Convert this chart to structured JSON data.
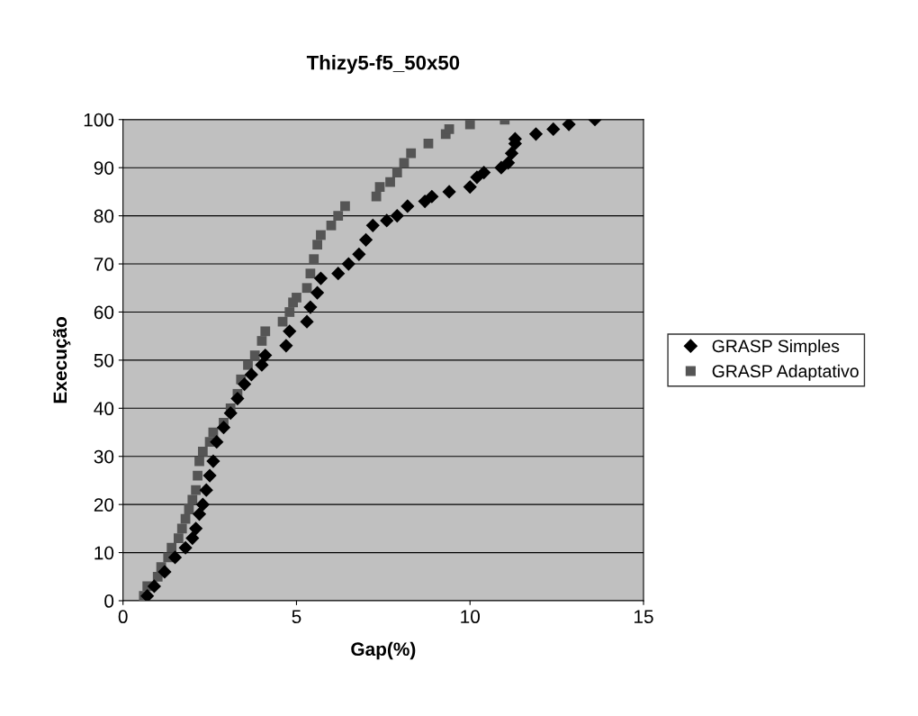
{
  "chart_data": {
    "type": "scatter",
    "title": "Thizy5-f5_50x50",
    "xlabel": "Gap(%)",
    "ylabel": "Execução",
    "xlim": [
      0,
      15
    ],
    "xticks": [
      0,
      5,
      10,
      15
    ],
    "ylim": [
      0,
      100
    ],
    "yticks": [
      0,
      10,
      20,
      30,
      40,
      50,
      60,
      70,
      80,
      90,
      100
    ],
    "grid": "y",
    "legend": "right",
    "series": [
      {
        "name": "GRASP Simples",
        "color": "#000000",
        "marker": "diamond",
        "x": [
          0.7,
          0.9,
          1.2,
          1.5,
          1.8,
          2.0,
          2.1,
          2.2,
          2.3,
          2.4,
          2.5,
          2.6,
          2.7,
          2.9,
          3.1,
          3.3,
          3.5,
          3.7,
          4.0,
          4.1,
          4.7,
          4.8,
          5.3,
          5.4,
          5.6,
          5.7,
          6.2,
          6.5,
          6.8,
          7.0,
          7.2,
          7.6,
          7.9,
          8.2,
          8.7,
          8.9,
          9.4,
          10.0,
          10.2,
          10.4,
          10.9,
          11.1,
          11.2,
          11.3,
          11.3,
          11.9,
          12.4,
          12.85,
          13.6
        ],
        "values": [
          1,
          3,
          6,
          9,
          11,
          13,
          15,
          18,
          20,
          23,
          26,
          29,
          33,
          36,
          39,
          42,
          45,
          47,
          49,
          51,
          53,
          56,
          58,
          61,
          64,
          67,
          68,
          70,
          72,
          75,
          78,
          79,
          80,
          82,
          83,
          84,
          85,
          86,
          88,
          89,
          90,
          91,
          93,
          95,
          96,
          97,
          98,
          99,
          100
        ]
      },
      {
        "name": "GRASP Adaptativo",
        "color": "#555555",
        "marker": "square",
        "x": [
          0.6,
          0.7,
          1.0,
          1.1,
          1.3,
          1.4,
          1.6,
          1.7,
          1.8,
          1.9,
          2.0,
          2.1,
          2.15,
          2.2,
          2.3,
          2.5,
          2.6,
          2.9,
          3.1,
          3.3,
          3.4,
          3.6,
          3.8,
          4.0,
          4.1,
          4.6,
          4.8,
          4.9,
          5.0,
          5.3,
          5.4,
          5.5,
          5.6,
          5.7,
          6.0,
          6.2,
          6.4,
          7.3,
          7.4,
          7.7,
          7.9,
          8.1,
          8.3,
          8.8,
          9.3,
          9.4,
          10.0,
          11.0
        ],
        "values": [
          1,
          3,
          5,
          7,
          9,
          11,
          13,
          15,
          17,
          19,
          21,
          23,
          26,
          29,
          31,
          33,
          35,
          37,
          40,
          43,
          46,
          49,
          51,
          54,
          56,
          58,
          60,
          62,
          63,
          65,
          68,
          71,
          74,
          76,
          78,
          80,
          82,
          84,
          86,
          87,
          89,
          91,
          93,
          95,
          97,
          98,
          99,
          100
        ]
      }
    ]
  }
}
